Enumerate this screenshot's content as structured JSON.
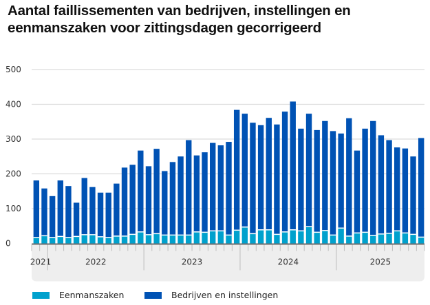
{
  "chart_data": {
    "type": "bar",
    "stacked": true,
    "title": "Aantal faillissementen van bedrijven, instellingen en eenmanszaken voor zittingsdagen gecorrigeerd",
    "xlabel": "",
    "ylabel": "",
    "ylim": [
      0,
      500
    ],
    "yticks": [
      0,
      100,
      200,
      300,
      400,
      500
    ],
    "grid": true,
    "legend_position": "bottom-left",
    "x_period": "monthly, Nov 2021 – Nov 2025",
    "year_groups": [
      {
        "label": "2021",
        "months": 2
      },
      {
        "label": "2022",
        "months": 12
      },
      {
        "label": "2023",
        "months": 12
      },
      {
        "label": "2024",
        "months": 12
      },
      {
        "label": "2025",
        "months": 11
      }
    ],
    "categories": [
      "2021-11",
      "2021-12",
      "2022-01",
      "2022-02",
      "2022-03",
      "2022-04",
      "2022-05",
      "2022-06",
      "2022-07",
      "2022-08",
      "2022-09",
      "2022-10",
      "2022-11",
      "2022-12",
      "2023-01",
      "2023-02",
      "2023-03",
      "2023-04",
      "2023-05",
      "2023-06",
      "2023-07",
      "2023-08",
      "2023-09",
      "2023-10",
      "2023-11",
      "2023-12",
      "2024-01",
      "2024-02",
      "2024-03",
      "2024-04",
      "2024-05",
      "2024-06",
      "2024-07",
      "2024-08",
      "2024-09",
      "2024-10",
      "2024-11",
      "2024-12",
      "2025-01",
      "2025-02",
      "2025-03",
      "2025-04",
      "2025-05",
      "2025-06",
      "2025-07",
      "2025-08",
      "2025-09",
      "2025-10",
      "2025-11"
    ],
    "series": [
      {
        "name": "Eenmanszaken",
        "color": "#00a1cd",
        "values": [
          17,
          22,
          17,
          20,
          17,
          20,
          25,
          25,
          19,
          17,
          21,
          21,
          26,
          33,
          25,
          28,
          24,
          24,
          24,
          24,
          33,
          32,
          36,
          36,
          24,
          38,
          47,
          28,
          39,
          39,
          26,
          33,
          39,
          36,
          48,
          32,
          37,
          24,
          44,
          21,
          30,
          32,
          23,
          27,
          29,
          36,
          30,
          26,
          18
        ]
      },
      {
        "name": "Bedrijven en instellingen",
        "color": "#0052b4",
        "values": [
          164,
          136,
          119,
          161,
          148,
          97,
          163,
          137,
          127,
          129,
          151,
          197,
          200,
          234,
          197,
          244,
          184,
          210,
          226,
          273,
          220,
          230,
          253,
          246,
          268,
          346,
          326,
          319,
          301,
          322,
          316,
          346,
          369,
          294,
          325,
          294,
          315,
          299,
          272,
          339,
          237,
          298,
          329,
          284,
          268,
          240,
          243,
          224,
          285
        ]
      }
    ]
  },
  "legend": [
    {
      "label": "Eenmanszaken",
      "color": "#00a1cd"
    },
    {
      "label": "Bedrijven en instellingen",
      "color": "#0052b4"
    }
  ]
}
